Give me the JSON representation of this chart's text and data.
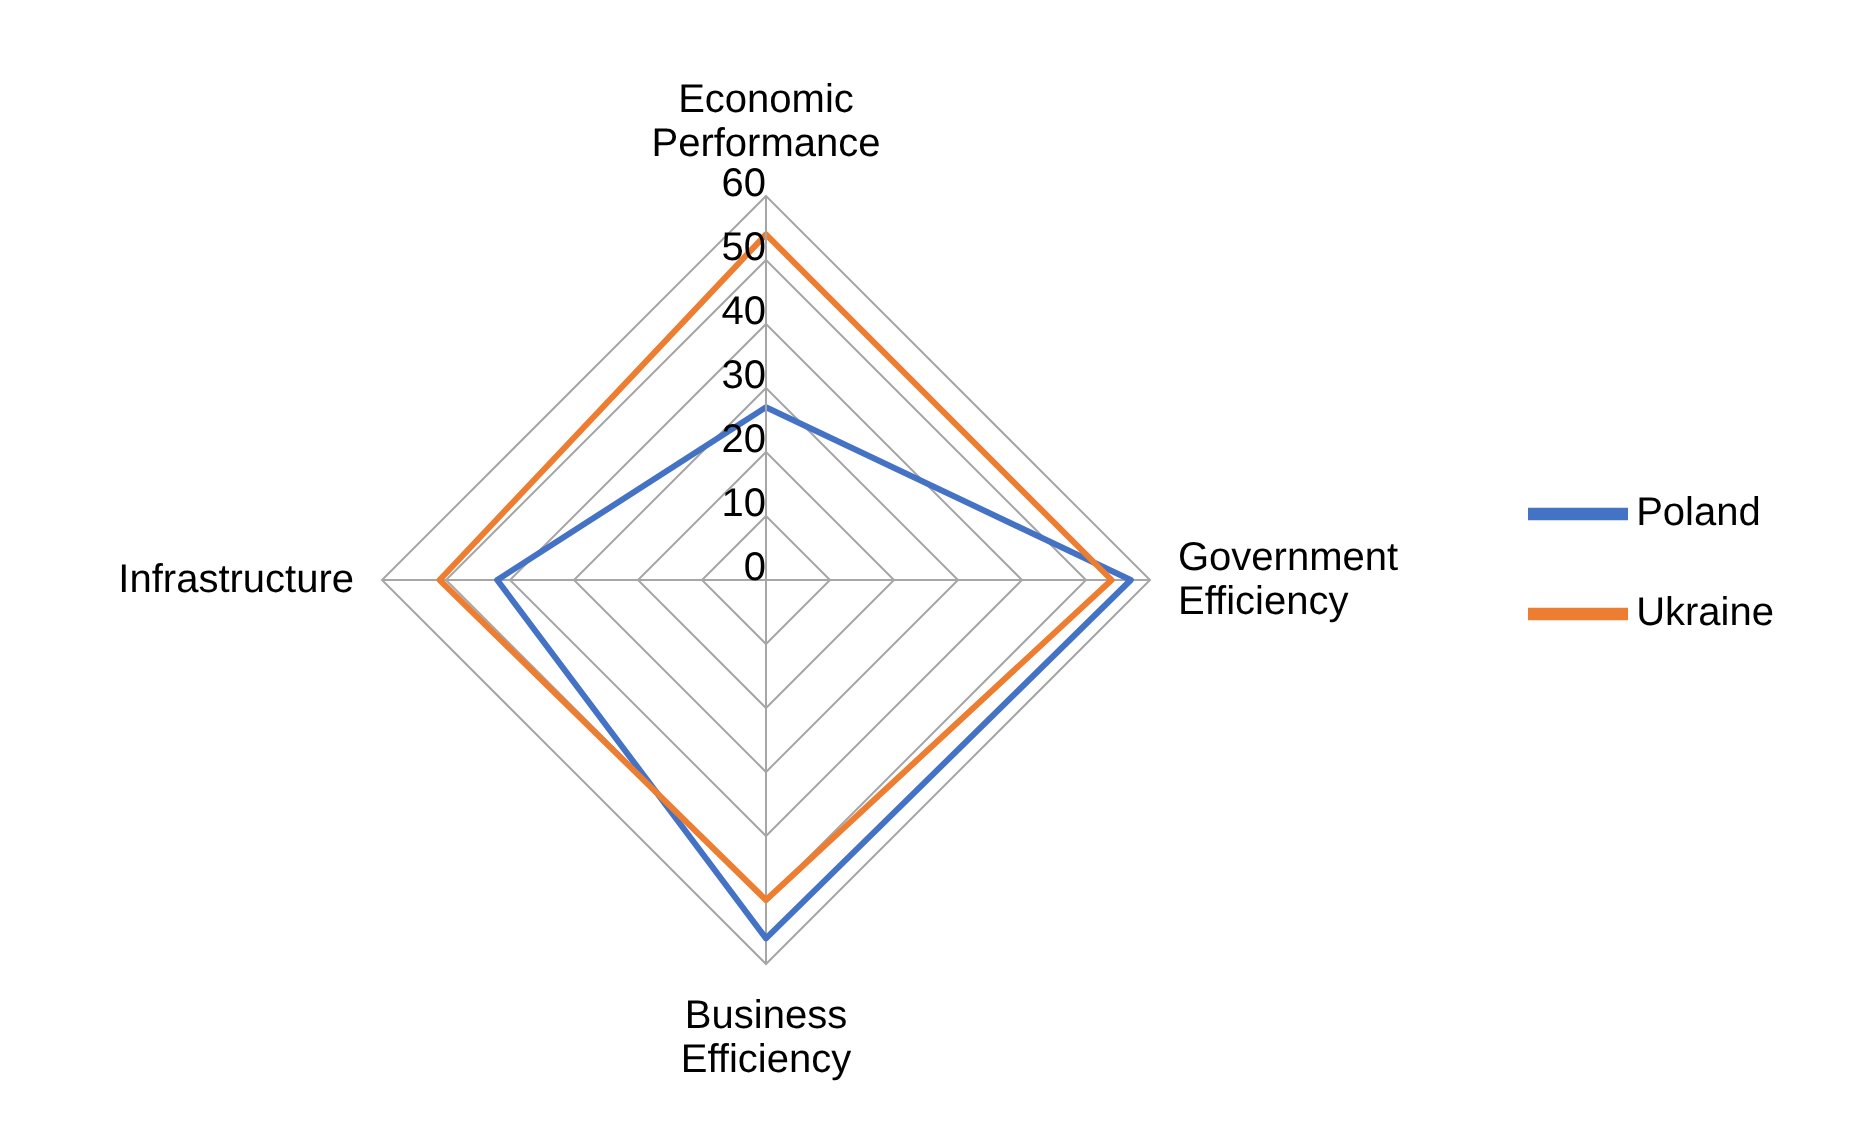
{
  "chart_data": {
    "type": "radar",
    "categories": [
      "Economic Performance",
      "Government Efficiency",
      "Business Efficiency",
      "Infrastructure"
    ],
    "series": [
      {
        "name": "Poland",
        "color": "#4472c4",
        "values": [
          27,
          57,
          56,
          42
        ]
      },
      {
        "name": "Ukraine",
        "color": "#ed7d31",
        "values": [
          54,
          54,
          50,
          51
        ]
      }
    ],
    "ylim": [
      0,
      60
    ],
    "yticks": [
      0,
      10,
      20,
      30,
      40,
      50,
      60
    ],
    "grid": true,
    "legend": "right",
    "marker": "none"
  }
}
